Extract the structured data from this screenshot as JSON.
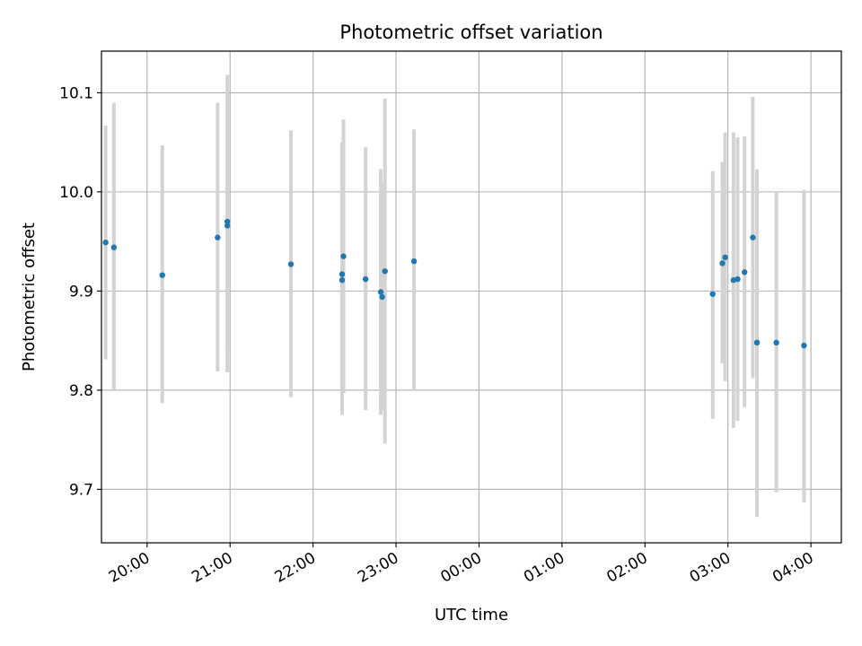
{
  "chart_data": {
    "type": "scatter",
    "title": "Photometric offset variation",
    "xlabel": "UTC time",
    "ylabel": "Photometric offset",
    "x_axis_kind": "time",
    "x_ticks": [
      "20:00",
      "21:00",
      "22:00",
      "23:00",
      "00:00",
      "01:00",
      "02:00",
      "03:00",
      "04:00"
    ],
    "xlim": [
      "19:27",
      "04:22"
    ],
    "y_ticks": [
      9.7,
      9.8,
      9.9,
      10.0,
      10.1
    ],
    "ylim": [
      9.646,
      10.142
    ],
    "grid": true,
    "marker_color": "#1f77b4",
    "errorbar_color": "#d3d3d3",
    "points": [
      {
        "x": "19:30",
        "y": 9.949,
        "ylow": 9.831,
        "yhigh": 10.067
      },
      {
        "x": "19:36",
        "y": 9.944,
        "ylow": 9.8,
        "yhigh": 10.09
      },
      {
        "x": "20:11",
        "y": 9.916,
        "ylow": 9.787,
        "yhigh": 10.047
      },
      {
        "x": "20:51",
        "y": 9.954,
        "ylow": 9.819,
        "yhigh": 10.09
      },
      {
        "x": "20:58",
        "y": 9.966,
        "ylow": 9.818,
        "yhigh": 10.118
      },
      {
        "x": "20:58",
        "y": 9.97,
        "ylow": 9.84,
        "yhigh": 10.1
      },
      {
        "x": "21:44",
        "y": 9.927,
        "ylow": 9.793,
        "yhigh": 10.062
      },
      {
        "x": "22:21",
        "y": 9.911,
        "ylow": 9.775,
        "yhigh": 10.05
      },
      {
        "x": "22:21",
        "y": 9.917,
        "ylow": 9.79,
        "yhigh": 10.045
      },
      {
        "x": "22:22",
        "y": 9.935,
        "ylow": 9.797,
        "yhigh": 10.073
      },
      {
        "x": "22:38",
        "y": 9.912,
        "ylow": 9.78,
        "yhigh": 10.045
      },
      {
        "x": "22:49",
        "y": 9.899,
        "ylow": 9.775,
        "yhigh": 10.023
      },
      {
        "x": "22:50",
        "y": 9.894,
        "ylow": 9.78,
        "yhigh": 10.01
      },
      {
        "x": "22:52",
        "y": 9.92,
        "ylow": 9.746,
        "yhigh": 10.094
      },
      {
        "x": "23:13",
        "y": 9.93,
        "ylow": 9.8,
        "yhigh": 10.063
      },
      {
        "x": "02:49",
        "y": 9.897,
        "ylow": 9.771,
        "yhigh": 10.021
      },
      {
        "x": "02:56",
        "y": 9.928,
        "ylow": 9.827,
        "yhigh": 10.03
      },
      {
        "x": "02:58",
        "y": 9.934,
        "ylow": 9.809,
        "yhigh": 10.06
      },
      {
        "x": "03:04",
        "y": 9.911,
        "ylow": 9.762,
        "yhigh": 10.06
      },
      {
        "x": "03:07",
        "y": 9.912,
        "ylow": 9.769,
        "yhigh": 10.055
      },
      {
        "x": "03:12",
        "y": 9.919,
        "ylow": 9.783,
        "yhigh": 10.056
      },
      {
        "x": "03:18",
        "y": 9.954,
        "ylow": 9.812,
        "yhigh": 10.096
      },
      {
        "x": "03:21",
        "y": 9.848,
        "ylow": 9.672,
        "yhigh": 10.023
      },
      {
        "x": "03:35",
        "y": 9.848,
        "ylow": 9.697,
        "yhigh": 10.0
      },
      {
        "x": "03:55",
        "y": 9.845,
        "ylow": 9.687,
        "yhigh": 10.002
      }
    ]
  }
}
